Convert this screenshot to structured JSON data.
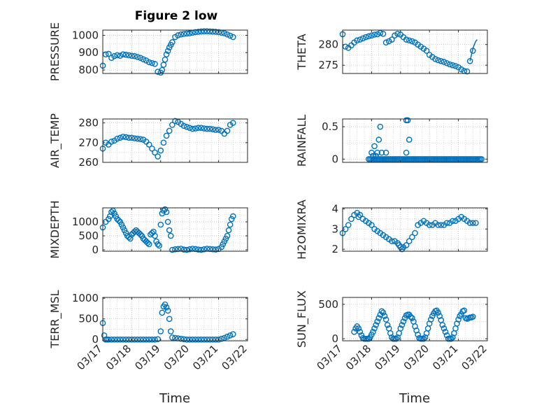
{
  "title": "Figure 2 low",
  "colors": {
    "marker": "#0072bd",
    "axis": "#262626",
    "grid": "#b0b0b0"
  },
  "chart_data": [
    {
      "type": "scatter",
      "ylabel": "PRESSURE",
      "ylim": [
        780,
        1030
      ],
      "yticks": [
        800,
        900,
        1000
      ],
      "ytick_labels": [
        "800",
        "900",
        "1000"
      ],
      "xlim": [
        0,
        5
      ],
      "x": [
        0.0,
        0.1,
        0.2,
        0.3,
        0.4,
        0.5,
        0.6,
        0.7,
        0.8,
        0.9,
        1.0,
        1.1,
        1.2,
        1.3,
        1.4,
        1.5,
        1.6,
        1.7,
        1.8,
        1.9,
        2.0,
        2.05,
        2.1,
        2.15,
        2.2,
        2.25,
        2.3,
        2.35,
        2.4,
        2.5,
        2.6,
        2.7,
        2.8,
        2.9,
        3.0,
        3.1,
        3.2,
        3.3,
        3.4,
        3.5,
        3.6,
        3.7,
        3.8,
        3.9,
        4.0,
        4.1,
        4.2,
        4.3,
        4.4,
        4.5
      ],
      "y": [
        825,
        890,
        893,
        870,
        880,
        885,
        882,
        890,
        888,
        885,
        882,
        880,
        875,
        870,
        862,
        855,
        845,
        840,
        835,
        790,
        785,
        800,
        830,
        860,
        890,
        910,
        930,
        945,
        960,
        990,
        1000,
        1005,
        1008,
        1010,
        1012,
        1015,
        1018,
        1020,
        1022,
        1023,
        1023,
        1022,
        1021,
        1020,
        1018,
        1015,
        1012,
        1005,
        998,
        990
      ]
    },
    {
      "type": "scatter",
      "ylabel": "THETA",
      "ylim": [
        273,
        283.5
      ],
      "yticks": [
        275,
        280
      ],
      "ytick_labels": [
        "275",
        "280"
      ],
      "xlim": [
        0,
        5
      ],
      "x": [
        0.0,
        0.1,
        0.2,
        0.3,
        0.4,
        0.5,
        0.6,
        0.7,
        0.8,
        0.9,
        1.0,
        1.1,
        1.2,
        1.3,
        1.4,
        1.5,
        1.6,
        1.7,
        1.8,
        1.9,
        2.0,
        2.1,
        2.2,
        2.3,
        2.4,
        2.5,
        2.6,
        2.7,
        2.8,
        2.9,
        3.0,
        3.1,
        3.2,
        3.3,
        3.4,
        3.5,
        3.6,
        3.7,
        3.8,
        3.9,
        4.0,
        4.1,
        4.2,
        4.3,
        4.4,
        4.5
      ],
      "y": [
        282.5,
        279.5,
        279.2,
        279.8,
        280.5,
        281.0,
        281.2,
        281.5,
        281.8,
        282.0,
        282.2,
        282.4,
        282.5,
        282.8,
        282.6,
        280.5,
        280.8,
        281.2,
        282.2,
        282.6,
        282.4,
        281.8,
        281.2,
        281.0,
        280.8,
        280.5,
        280.0,
        279.5,
        279.0,
        278.5,
        277.5,
        277.0,
        276.5,
        276.2,
        276.0,
        275.8,
        275.5,
        275.2,
        275.0,
        274.8,
        274.5,
        274.0,
        273.6,
        273.5,
        276.0,
        278.5
      ],
      "line_points": [
        [
          4.4,
          276.0
        ],
        [
          4.45,
          277.5
        ],
        [
          4.5,
          279.0
        ],
        [
          4.55,
          280.0
        ],
        [
          4.6,
          280.8
        ],
        [
          4.65,
          281.2
        ]
      ]
    },
    {
      "type": "scatter",
      "ylabel": "AIR_TEMP",
      "ylim": [
        260,
        282
      ],
      "yticks": [
        260,
        270,
        280
      ],
      "ytick_labels": [
        "260",
        "270",
        "280"
      ],
      "xlim": [
        0,
        5
      ],
      "x": [
        0.0,
        0.1,
        0.2,
        0.3,
        0.4,
        0.5,
        0.6,
        0.7,
        0.8,
        0.9,
        1.0,
        1.1,
        1.2,
        1.3,
        1.4,
        1.5,
        1.6,
        1.7,
        1.8,
        1.9,
        2.0,
        2.1,
        2.2,
        2.3,
        2.4,
        2.5,
        2.6,
        2.7,
        2.8,
        2.9,
        3.0,
        3.1,
        3.2,
        3.3,
        3.4,
        3.5,
        3.6,
        3.7,
        3.8,
        3.9,
        4.0,
        4.1,
        4.2,
        4.3,
        4.4,
        4.5
      ],
      "y": [
        267,
        270,
        269,
        270.5,
        271,
        272,
        272.5,
        273,
        272.8,
        272.5,
        272.5,
        272.2,
        272,
        271.8,
        271.5,
        270.5,
        269,
        267,
        265,
        263,
        266,
        270,
        273.5,
        276,
        279,
        281,
        280.5,
        279.5,
        278.5,
        278,
        277.5,
        277,
        277.2,
        277.5,
        277.5,
        277.2,
        277,
        277,
        276.8,
        276.5,
        276.5,
        276,
        274.5,
        276,
        279,
        280
      ]
    },
    {
      "type": "scatter",
      "ylabel": "RAINFALL",
      "ylim": [
        -0.05,
        0.62
      ],
      "yticks": [
        0,
        0.5
      ],
      "ytick_labels": [
        "0",
        "0.5"
      ],
      "xlim": [
        0,
        5
      ],
      "x": [
        0.9,
        0.95,
        1.0,
        1.05,
        1.1,
        1.15,
        1.2,
        1.25,
        1.3,
        1.35,
        1.4,
        1.45,
        1.5,
        1.55,
        1.6,
        1.65,
        1.7,
        1.75,
        1.8,
        1.85,
        1.9,
        1.95,
        2.0,
        2.05,
        2.1,
        2.15,
        2.2,
        2.25,
        2.3,
        2.35,
        2.4,
        2.45,
        2.5,
        2.55,
        2.6,
        2.65,
        2.7,
        2.75,
        2.8,
        2.85,
        2.9,
        2.95,
        3.0,
        3.05,
        3.1,
        3.15,
        3.2,
        3.25,
        3.3,
        3.35,
        3.4,
        3.45,
        3.5,
        3.55,
        3.6,
        3.65,
        3.7,
        3.75,
        3.8,
        3.85,
        3.9,
        3.95,
        4.0,
        4.05,
        4.1,
        4.15,
        4.2,
        4.25,
        4.3,
        4.35,
        4.4,
        4.45,
        4.5,
        4.55,
        4.6,
        4.65,
        4.7,
        4.75,
        4.8,
        1.0,
        1.05,
        1.1,
        1.2,
        1.25,
        1.3,
        1.35,
        1.15,
        1.5,
        2.2,
        2.25,
        2.3,
        2.2
      ],
      "y": [
        0,
        0,
        0,
        0,
        0,
        0,
        0,
        0,
        0,
        0,
        0,
        0,
        0,
        0,
        0,
        0,
        0,
        0,
        0,
        0,
        0,
        0,
        0,
        0,
        0,
        0,
        0,
        0,
        0,
        0,
        0,
        0,
        0,
        0,
        0,
        0,
        0,
        0,
        0,
        0,
        0,
        0,
        0,
        0,
        0,
        0,
        0,
        0,
        0,
        0,
        0,
        0,
        0,
        0,
        0,
        0,
        0,
        0,
        0,
        0,
        0,
        0,
        0,
        0,
        0,
        0,
        0,
        0,
        0,
        0,
        0,
        0,
        0,
        0,
        0,
        0,
        0,
        0,
        0,
        0.1,
        0.05,
        0.2,
        0.1,
        0.3,
        0.5,
        0.1,
        0.05,
        0.1,
        0.6,
        0.6,
        0.3,
        0.1
      ]
    },
    {
      "type": "scatter",
      "ylabel": "MIXDEPTH",
      "ylim": [
        -50,
        1500
      ],
      "yticks": [
        0,
        500,
        1000
      ],
      "ytick_labels": [
        "0",
        "500",
        "1000"
      ],
      "xlim": [
        0,
        5
      ],
      "x": [
        0.0,
        0.1,
        0.2,
        0.25,
        0.3,
        0.35,
        0.4,
        0.45,
        0.5,
        0.55,
        0.6,
        0.65,
        0.7,
        0.75,
        0.8,
        0.85,
        0.9,
        0.95,
        1.0,
        1.05,
        1.1,
        1.15,
        1.2,
        1.25,
        1.3,
        1.35,
        1.4,
        1.45,
        1.5,
        1.55,
        1.6,
        1.65,
        1.7,
        1.75,
        1.8,
        1.85,
        1.9,
        1.95,
        2.0,
        2.05,
        2.1,
        2.15,
        2.2,
        2.25,
        2.3,
        2.35,
        2.4,
        2.5,
        2.6,
        2.7,
        2.8,
        2.9,
        3.0,
        3.1,
        3.2,
        3.3,
        3.4,
        3.5,
        3.6,
        3.7,
        3.8,
        3.9,
        4.0,
        4.1,
        4.15,
        4.2,
        4.25,
        4.3,
        4.35,
        4.4,
        4.45,
        4.5
      ],
      "y": [
        800,
        1000,
        1100,
        1200,
        1350,
        1400,
        1300,
        1200,
        1100,
        1050,
        1000,
        900,
        800,
        700,
        600,
        500,
        450,
        400,
        550,
        600,
        650,
        700,
        650,
        600,
        550,
        500,
        400,
        350,
        300,
        250,
        200,
        550,
        600,
        650,
        500,
        300,
        200,
        150,
        900,
        1300,
        1400,
        1450,
        1350,
        1000,
        700,
        500,
        0,
        20,
        30,
        40,
        10,
        0,
        20,
        40,
        30,
        10,
        0,
        20,
        40,
        30,
        20,
        10,
        30,
        100,
        200,
        300,
        400,
        500,
        700,
        900,
        1100,
        1200
      ]
    },
    {
      "type": "scatter",
      "ylabel": "H2OMIXRA",
      "ylim": [
        1.9,
        4.05
      ],
      "yticks": [
        2,
        3,
        4
      ],
      "ytick_labels": [
        "2",
        "3",
        "4"
      ],
      "xlim": [
        0,
        5
      ],
      "x": [
        0.0,
        0.1,
        0.2,
        0.3,
        0.4,
        0.5,
        0.55,
        0.6,
        0.7,
        0.8,
        0.9,
        1.0,
        1.1,
        1.2,
        1.3,
        1.4,
        1.5,
        1.6,
        1.7,
        1.8,
        1.9,
        1.95,
        2.0,
        2.05,
        2.1,
        2.2,
        2.3,
        2.4,
        2.5,
        2.6,
        2.7,
        2.8,
        2.9,
        3.0,
        3.1,
        3.2,
        3.3,
        3.4,
        3.5,
        3.6,
        3.7,
        3.8,
        3.9,
        4.0,
        4.1,
        4.2,
        4.3,
        4.4,
        4.5,
        4.6
      ],
      "y": [
        2.8,
        3.0,
        3.2,
        3.5,
        3.7,
        3.8,
        3.6,
        3.7,
        3.5,
        3.4,
        3.3,
        3.2,
        3.0,
        2.9,
        2.8,
        2.7,
        2.6,
        2.5,
        2.4,
        2.4,
        2.3,
        2.2,
        2.1,
        2.0,
        2.1,
        2.2,
        2.4,
        2.6,
        2.8,
        3.2,
        3.3,
        3.4,
        3.3,
        3.2,
        3.2,
        3.3,
        3.2,
        3.2,
        3.2,
        3.3,
        3.3,
        3.4,
        3.4,
        3.5,
        3.6,
        3.5,
        3.4,
        3.3,
        3.3,
        3.3
      ]
    },
    {
      "type": "scatter",
      "ylabel": "TERR_MSL",
      "ylim": [
        -30,
        1020
      ],
      "yticks": [
        0,
        500,
        1000
      ],
      "ytick_labels": [
        "0",
        "500",
        "1000"
      ],
      "xlim": [
        0,
        5
      ],
      "x": [
        0.0,
        0.05,
        0.1,
        0.15,
        0.2,
        0.3,
        0.4,
        0.5,
        0.6,
        0.7,
        0.8,
        0.9,
        1.0,
        1.1,
        1.2,
        1.3,
        1.4,
        1.5,
        1.6,
        1.7,
        1.8,
        1.9,
        2.0,
        2.05,
        2.1,
        2.15,
        2.2,
        2.25,
        2.3,
        2.35,
        2.4,
        2.5,
        2.6,
        2.7,
        2.8,
        2.9,
        3.0,
        3.1,
        3.2,
        3.3,
        3.4,
        3.5,
        3.6,
        3.7,
        3.8,
        3.9,
        4.0,
        4.1,
        4.2,
        4.3,
        4.4,
        4.5
      ],
      "y": [
        400,
        100,
        0,
        0,
        0,
        0,
        0,
        0,
        0,
        0,
        0,
        0,
        0,
        0,
        0,
        0,
        0,
        0,
        0,
        0,
        0,
        10,
        200,
        650,
        800,
        850,
        780,
        700,
        500,
        200,
        50,
        40,
        30,
        20,
        10,
        0,
        0,
        0,
        0,
        0,
        0,
        0,
        0,
        0,
        0,
        0,
        0,
        20,
        40,
        70,
        100,
        130
      ]
    },
    {
      "type": "scatter",
      "ylabel": "SUN_FLUX",
      "ylim": [
        -30,
        600
      ],
      "yticks": [
        0,
        500
      ],
      "ytick_labels": [
        "0",
        "500"
      ],
      "xlim": [
        0,
        5
      ],
      "x": [
        0.4,
        0.45,
        0.5,
        0.55,
        0.6,
        0.65,
        0.7,
        0.75,
        0.8,
        0.85,
        0.9,
        0.95,
        1.0,
        1.05,
        1.1,
        1.15,
        1.2,
        1.25,
        1.3,
        1.35,
        1.4,
        1.45,
        1.5,
        1.55,
        1.6,
        1.65,
        1.7,
        1.75,
        1.8,
        1.85,
        1.9,
        1.95,
        2.0,
        2.05,
        2.1,
        2.15,
        2.2,
        2.25,
        2.3,
        2.35,
        2.4,
        2.45,
        2.5,
        2.55,
        2.6,
        2.65,
        2.7,
        2.75,
        2.8,
        2.85,
        2.9,
        2.95,
        3.0,
        3.05,
        3.1,
        3.15,
        3.2,
        3.25,
        3.3,
        3.35,
        3.4,
        3.45,
        3.5,
        3.55,
        3.6,
        3.65,
        3.7,
        3.75,
        3.8,
        3.85,
        3.9,
        3.95,
        4.0,
        4.05,
        4.1,
        4.15,
        4.2,
        4.25,
        4.3,
        4.35,
        4.4,
        4.45,
        4.5
      ],
      "y": [
        100,
        150,
        180,
        150,
        100,
        50,
        10,
        0,
        0,
        0,
        0,
        20,
        60,
        100,
        150,
        200,
        250,
        300,
        350,
        400,
        380,
        330,
        280,
        200,
        150,
        80,
        20,
        0,
        0,
        0,
        20,
        80,
        150,
        200,
        250,
        300,
        340,
        350,
        350,
        320,
        300,
        250,
        180,
        120,
        60,
        10,
        0,
        0,
        0,
        20,
        80,
        150,
        220,
        280,
        330,
        370,
        400,
        410,
        380,
        330,
        270,
        200,
        150,
        100,
        50,
        0,
        0,
        0,
        20,
        80,
        150,
        220,
        280,
        330,
        360,
        400,
        410,
        300,
        290,
        300,
        310,
        310,
        320
      ]
    }
  ],
  "x_axis": {
    "xlabel": "Time",
    "tick_labels": [
      "03/17",
      "03/18",
      "03/19",
      "03/20",
      "03/21",
      "03/22"
    ]
  }
}
